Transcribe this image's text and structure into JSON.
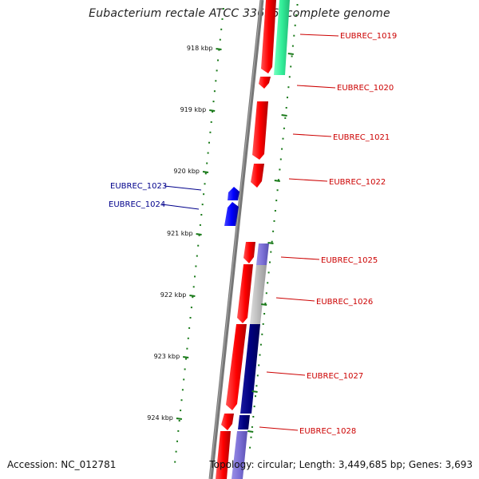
{
  "title": "Eubacterium rectale ATCC 33656, complete genome",
  "accession": "Accession: NC_012781",
  "summary": "Topology: circular; Length: 3,449,685 bp; Genes: 3,693",
  "colors": {
    "backbone": "#777777",
    "forward_gene": "#ff0000",
    "reverse_gene": "#0000ff",
    "label_red": "#cc0000",
    "label_blue": "#00008b",
    "tick": "#1a7a1a",
    "teal_feature": "#33ff99",
    "purple_feature": "#7b6fd6",
    "gray_feature": "#bbbbbb",
    "navy_feature": "#000080"
  },
  "kbp_ticks": [
    "918 kbp",
    "919 kbp",
    "920 kbp",
    "921 kbp",
    "922 kbp",
    "923 kbp",
    "924 kbp"
  ],
  "gene_labels_right": [
    "EUBREC_1019",
    "EUBREC_1020",
    "EUBREC_1021",
    "EUBREC_1022",
    "EUBREC_1025",
    "EUBREC_1026",
    "EUBREC_1027",
    "EUBREC_1028"
  ],
  "gene_labels_left": [
    "EUBREC_1023",
    "EUBREC_1024"
  ]
}
